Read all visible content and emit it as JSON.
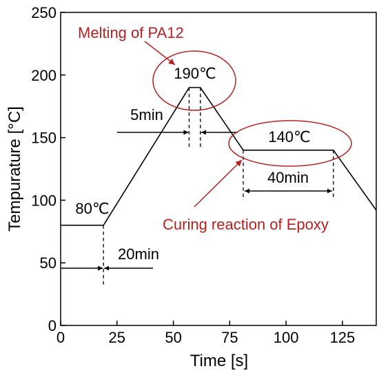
{
  "chart_data": {
    "type": "line",
    "xlabel": "Time [s]",
    "ylabel": "Tempurature [°C]",
    "xlim": [
      0,
      140
    ],
    "ylim": [
      0,
      250
    ],
    "x_ticks": [
      0,
      25,
      50,
      75,
      100,
      125
    ],
    "y_ticks": [
      0,
      50,
      100,
      150,
      200,
      250
    ],
    "grid": false,
    "series": [
      {
        "x": [
          0,
          19,
          57,
          62,
          81,
          121,
          140
        ],
        "y": [
          80,
          80,
          190,
          190,
          140,
          140,
          92
        ]
      }
    ],
    "annotations": {
      "melting": "Melting of PA12",
      "curing": "Curing reaction of Epoxy",
      "peak_temp": "190℃",
      "hold_temp": "140℃",
      "start_temp": "80℃",
      "hold_5": "5min",
      "hold_40": "40min",
      "ramp_20": "20min"
    },
    "colors": {
      "line": "#000000",
      "annotation": "#b22222"
    }
  }
}
